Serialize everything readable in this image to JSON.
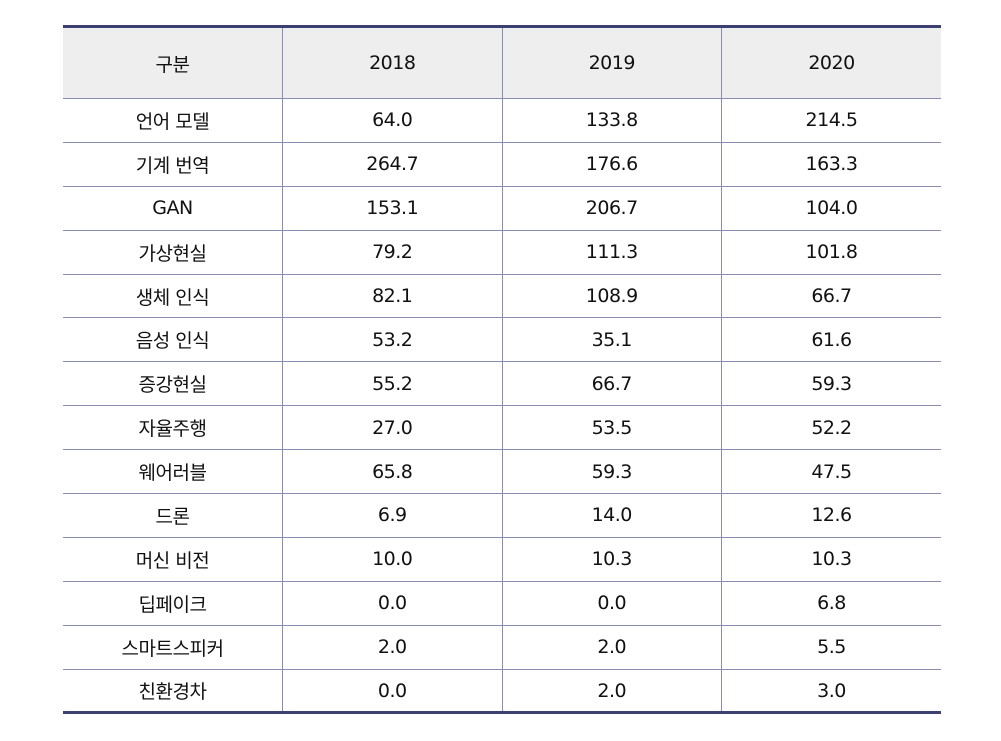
{
  "table": {
    "headers": [
      "구분",
      "2018",
      "2019",
      "2020"
    ],
    "rows": [
      [
        "언어 모델",
        "64.0",
        "133.8",
        "214.5"
      ],
      [
        "기계 번역",
        "264.7",
        "176.6",
        "163.3"
      ],
      [
        "GAN",
        "153.1",
        "206.7",
        "104.0"
      ],
      [
        "가상현실",
        "79.2",
        "111.3",
        "101.8"
      ],
      [
        "생체 인식",
        "82.1",
        "108.9",
        "66.7"
      ],
      [
        "음성 인식",
        "53.2",
        "35.1",
        "61.6"
      ],
      [
        "증강현실",
        "55.2",
        "66.7",
        "59.3"
      ],
      [
        "자율주행",
        "27.0",
        "53.5",
        "52.2"
      ],
      [
        "웨어러블",
        "65.8",
        "59.3",
        "47.5"
      ],
      [
        "드론",
        "6.9",
        "14.0",
        "12.6"
      ],
      [
        "머신 비전",
        "10.0",
        "10.3",
        "10.3"
      ],
      [
        "딥페이크",
        "0.0",
        "0.0",
        "6.8"
      ],
      [
        "스마트스피커",
        "2.0",
        "2.0",
        "5.5"
      ],
      [
        "친환경차",
        "0.0",
        "2.0",
        "3.0"
      ]
    ]
  }
}
